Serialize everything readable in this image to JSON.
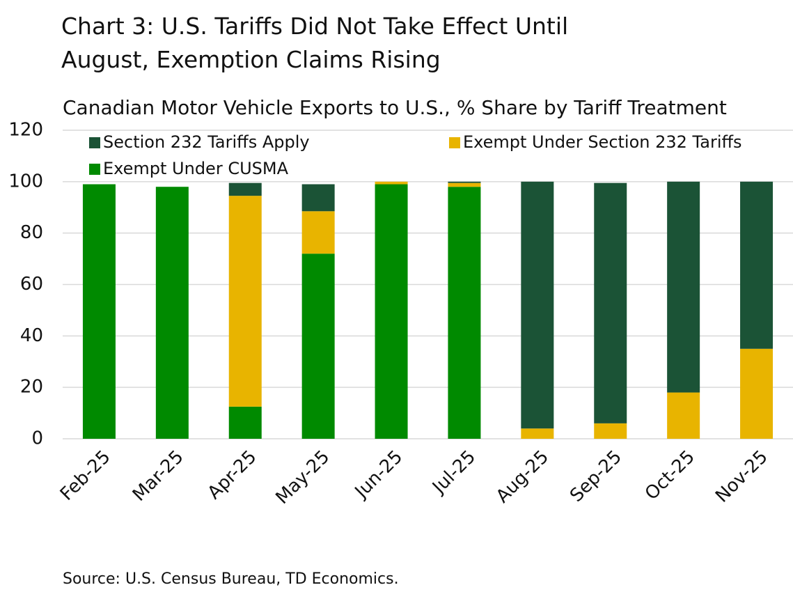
{
  "chart_data": {
    "type": "stacked_bar",
    "title": "Chart 3: U.S. Tariffs Did Not Take Effect Until August, Exemption Claims Rising",
    "subtitle": "Canadian Motor Vehicle Exports to U.S., % Share by Tariff Treatment",
    "source": "Source: U.S. Census Bureau, TD Economics.",
    "categories": [
      "Feb-25",
      "Mar-25",
      "Apr-25",
      "May-25",
      "Jun-25",
      "Jul-25",
      "Aug-25",
      "Sep-25",
      "Oct-25",
      "Nov-25"
    ],
    "series": [
      {
        "name": "Exempt Under CUSMA",
        "color": "#008a00",
        "values": [
          99,
          98,
          12.5,
          72,
          99,
          98,
          0,
          0,
          0,
          0
        ]
      },
      {
        "name": "Exempt Under Section 232 Tariffs",
        "color": "#e8b400",
        "values": [
          0,
          0,
          82,
          16.5,
          1,
          1.5,
          4,
          6,
          18,
          35
        ]
      },
      {
        "name": "Section 232 Tariffs Apply",
        "color": "#1b5336",
        "values": [
          0,
          0,
          5,
          10.5,
          0,
          0.5,
          96,
          93.5,
          82,
          65
        ]
      }
    ],
    "ylim": [
      0,
      120
    ],
    "yticks": [
      0,
      20,
      40,
      60,
      80,
      100,
      120
    ],
    "grid": true
  }
}
